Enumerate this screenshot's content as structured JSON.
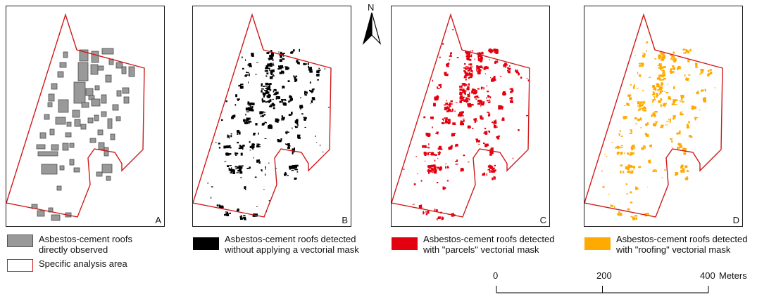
{
  "panels": [
    {
      "label": "A",
      "mode": "observed",
      "fill": "#999999",
      "stroke": "#4d4d4d"
    },
    {
      "label": "B",
      "mode": "none",
      "fill": "#000000",
      "stroke": "none"
    },
    {
      "label": "C",
      "mode": "parcels",
      "fill": "#e3000f",
      "stroke": "none"
    },
    {
      "label": "D",
      "mode": "roofing",
      "fill": "#ffaa00",
      "stroke": "none"
    }
  ],
  "boundary_color": "#d11a1a",
  "legend": {
    "observed": {
      "text": "Asbestos-cement roofs\ndirectly observed",
      "color": "#999999"
    },
    "area": {
      "text": "Specific analysis area",
      "color": "#d11a1a"
    },
    "no_mask": {
      "text": "Asbestos-cement roofs detected\nwithout applying a vectorial mask",
      "color": "#000000"
    },
    "parcels": {
      "text": "Asbestos-cement roofs detected\nwith \"parcels\" vectorial mask",
      "color": "#e3000f"
    },
    "roofing": {
      "text": "Asbestos-cement roofs detected\nwith \"roofing\" vectorial mask",
      "color": "#ffaa00"
    }
  },
  "north_arrow": {
    "label": "N"
  },
  "scale_bar": {
    "ticks": [
      "0",
      "200",
      "400"
    ],
    "unit": "Meters"
  }
}
